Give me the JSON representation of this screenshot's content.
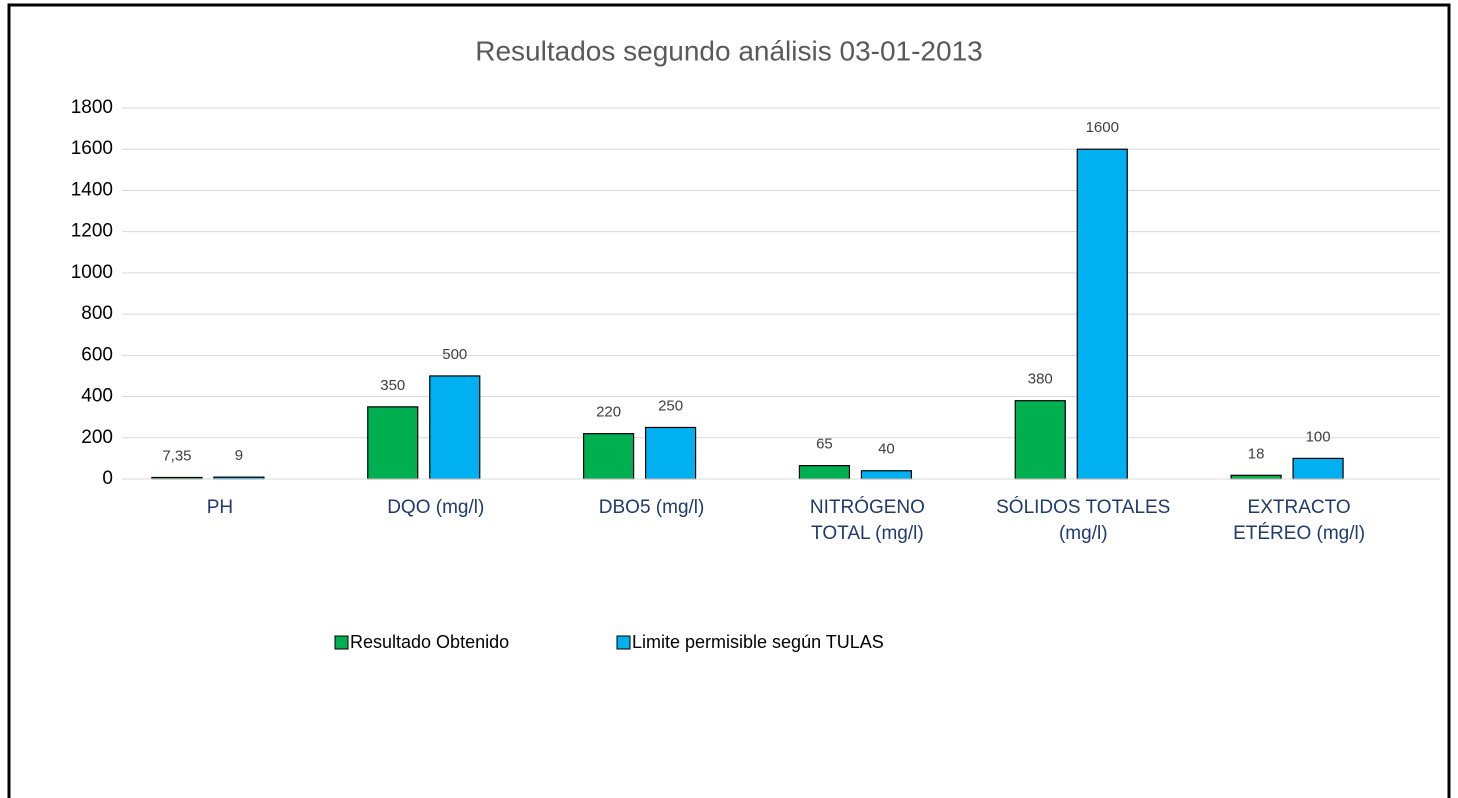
{
  "chart_data": {
    "type": "bar",
    "title": "Resultados segundo análisis 03-01-2013",
    "categories": [
      "PH",
      "DQO (mg/l)",
      "DBO5 (mg/l)",
      "NITRÓGENO TOTAL (mg/l)",
      "SÓLIDOS TOTALES (mg/l)",
      "EXTRACTO ETÉREO (mg/l)"
    ],
    "series": [
      {
        "name": "Resultado Obtenido",
        "color": "#00b050",
        "values": [
          7.35,
          350,
          220,
          65,
          380,
          18
        ],
        "value_labels": [
          "7,35",
          "350",
          "220",
          "65",
          "380",
          "18"
        ]
      },
      {
        "name": "Limite permisible según TULAS",
        "color": "#00b0f0",
        "values": [
          9,
          500,
          250,
          40,
          1600,
          100
        ]
      }
    ],
    "ylim": [
      0,
      1800
    ],
    "yticks": [
      0,
      200,
      400,
      600,
      800,
      1000,
      1200,
      1400,
      1600,
      1800
    ],
    "grid": true,
    "legend": "bottom"
  }
}
